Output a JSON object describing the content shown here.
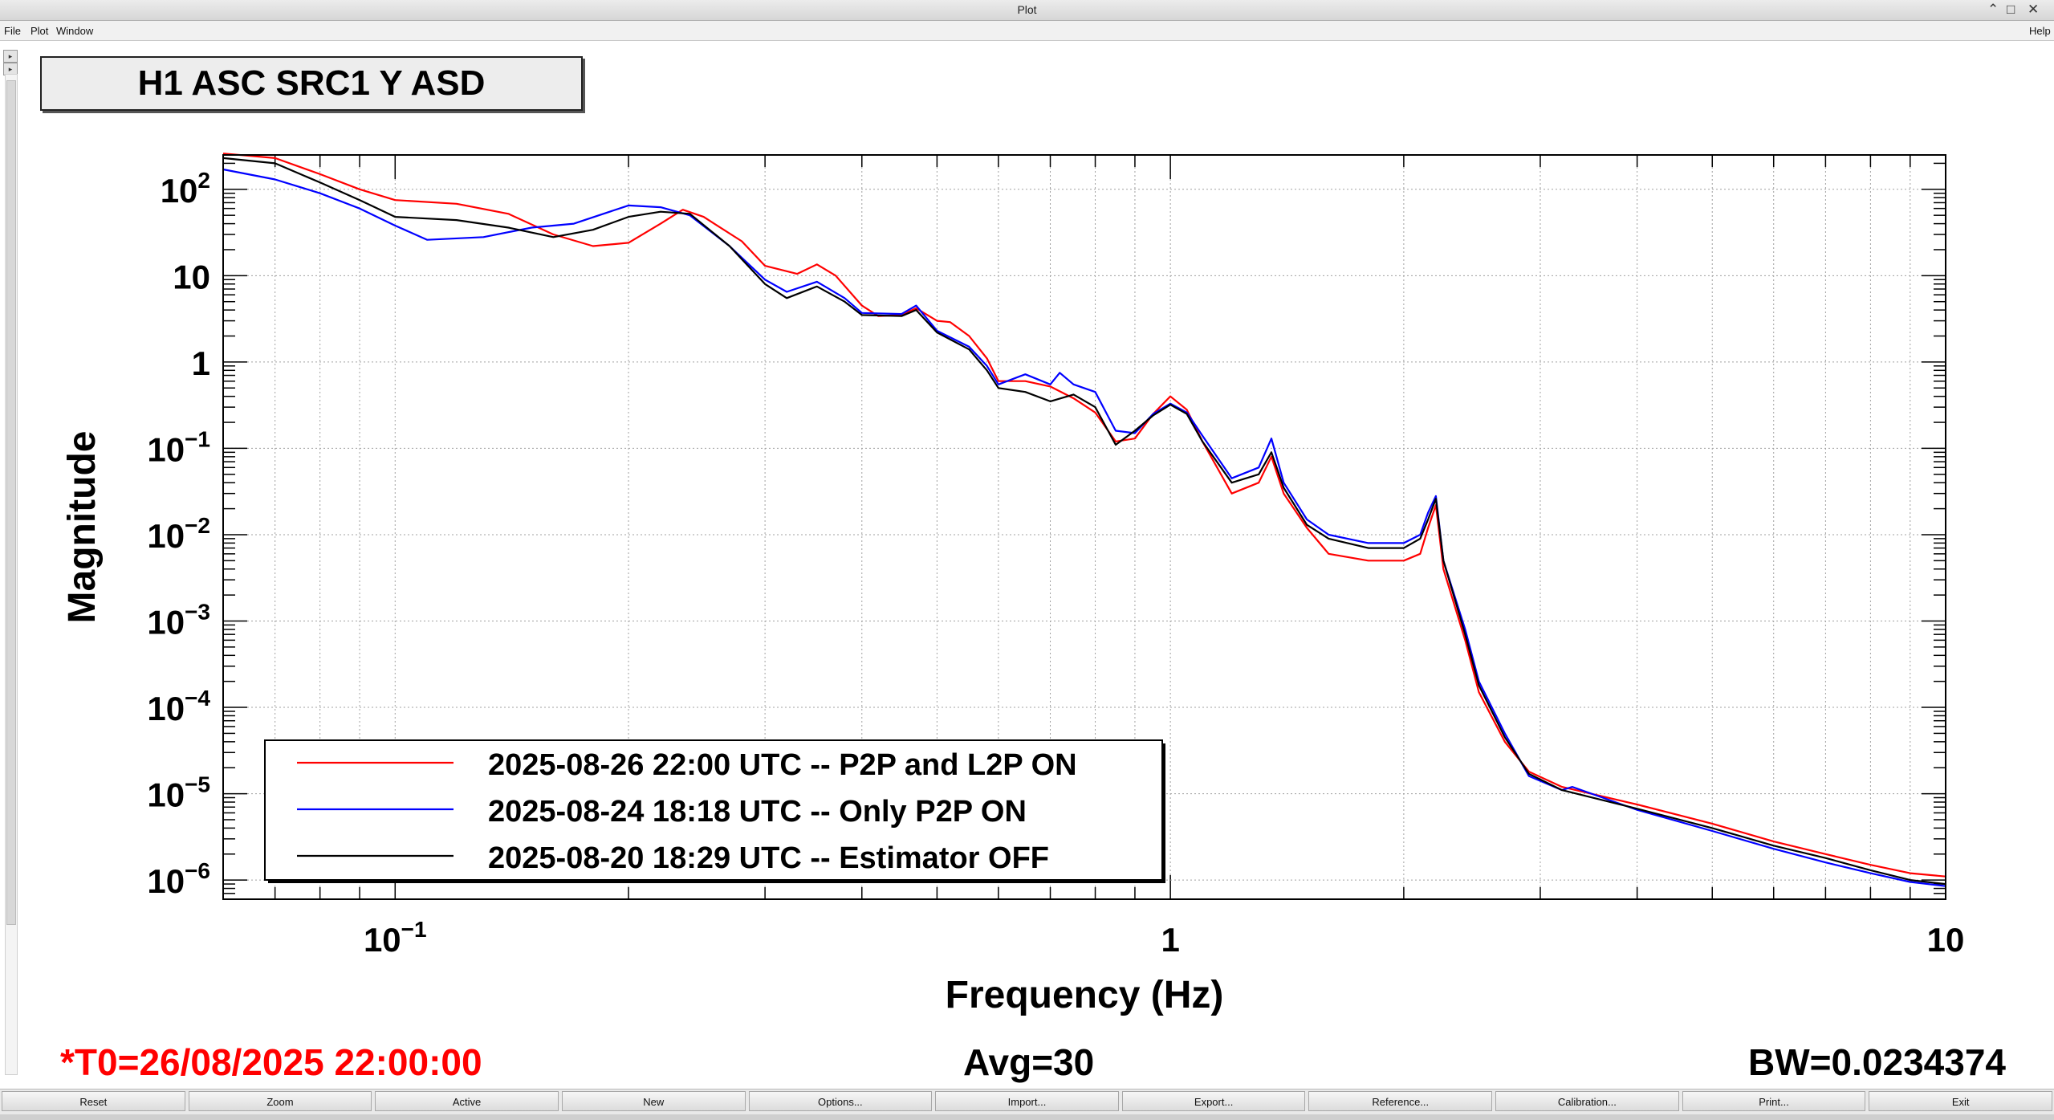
{
  "window": {
    "title": "Plot",
    "controls": [
      "⌃",
      "□",
      "✕"
    ]
  },
  "menu": {
    "file": "File",
    "plot": "Plot",
    "window": "Window",
    "help": "Help"
  },
  "plot": {
    "title": "H1 ASC SRC1 Y ASD"
  },
  "status": {
    "t0": "*T0=26/08/2025 22:00:00",
    "avg": "Avg=30",
    "bw": "BW=0.0234374"
  },
  "buttons": [
    "Reset",
    "Zoom",
    "Active",
    "New",
    "Options...",
    "Import...",
    "Export...",
    "Reference...",
    "Calibration...",
    "Print...",
    "Exit"
  ],
  "colors": {
    "red": "#ff0000",
    "blue": "#0000ff",
    "black": "#000000",
    "titlebox": "#ededed"
  },
  "chart_data": {
    "type": "line",
    "xlabel": "Frequency (Hz)",
    "ylabel": "Magnitude",
    "xscale": "log",
    "yscale": "log",
    "xlim": [
      0.06,
      10
    ],
    "ylim": [
      6e-07,
      250
    ],
    "grid": true,
    "legend_position": "bottom-left",
    "x_ticks": [
      {
        "value": 0.1,
        "base": "10",
        "exp": "−1"
      },
      {
        "value": 1,
        "base": "1",
        "exp": ""
      },
      {
        "value": 10,
        "base": "10",
        "exp": ""
      }
    ],
    "y_ticks": [
      {
        "value": 100,
        "base": "10",
        "exp": "2"
      },
      {
        "value": 10,
        "base": "10",
        "exp": ""
      },
      {
        "value": 1,
        "base": "1",
        "exp": ""
      },
      {
        "value": 0.1,
        "base": "10",
        "exp": "−1"
      },
      {
        "value": 0.01,
        "base": "10",
        "exp": "−2"
      },
      {
        "value": 0.001,
        "base": "10",
        "exp": "−3"
      },
      {
        "value": 0.0001,
        "base": "10",
        "exp": "−4"
      },
      {
        "value": 1e-05,
        "base": "10",
        "exp": "−5"
      },
      {
        "value": 1e-06,
        "base": "10",
        "exp": "−6"
      }
    ],
    "series": [
      {
        "name": "2025-08-26 22:00 UTC -- P2P and L2P ON",
        "color": "#ff0000",
        "points": [
          [
            0.06,
            260
          ],
          [
            0.07,
            230
          ],
          [
            0.08,
            150
          ],
          [
            0.09,
            100
          ],
          [
            0.1,
            75
          ],
          [
            0.12,
            68
          ],
          [
            0.14,
            52
          ],
          [
            0.16,
            30
          ],
          [
            0.18,
            22
          ],
          [
            0.2,
            24
          ],
          [
            0.22,
            40
          ],
          [
            0.235,
            58
          ],
          [
            0.25,
            48
          ],
          [
            0.28,
            25
          ],
          [
            0.3,
            13
          ],
          [
            0.33,
            10.5
          ],
          [
            0.35,
            13.5
          ],
          [
            0.37,
            10
          ],
          [
            0.4,
            4.5
          ],
          [
            0.42,
            3.4
          ],
          [
            0.45,
            3.5
          ],
          [
            0.47,
            4.2
          ],
          [
            0.5,
            3
          ],
          [
            0.52,
            2.9
          ],
          [
            0.55,
            2
          ],
          [
            0.58,
            1.1
          ],
          [
            0.6,
            0.6
          ],
          [
            0.65,
            0.6
          ],
          [
            0.7,
            0.52
          ],
          [
            0.75,
            0.38
          ],
          [
            0.8,
            0.26
          ],
          [
            0.85,
            0.12
          ],
          [
            0.9,
            0.13
          ],
          [
            0.95,
            0.25
          ],
          [
            1.0,
            0.4
          ],
          [
            1.05,
            0.28
          ],
          [
            1.1,
            0.12
          ],
          [
            1.2,
            0.03
          ],
          [
            1.3,
            0.04
          ],
          [
            1.35,
            0.08
          ],
          [
            1.4,
            0.03
          ],
          [
            1.5,
            0.012
          ],
          [
            1.6,
            0.006
          ],
          [
            1.8,
            0.005
          ],
          [
            2.0,
            0.005
          ],
          [
            2.1,
            0.006
          ],
          [
            2.15,
            0.012
          ],
          [
            2.2,
            0.022
          ],
          [
            2.25,
            0.004
          ],
          [
            2.4,
            0.0006
          ],
          [
            2.5,
            0.00015
          ],
          [
            2.7,
            4e-05
          ],
          [
            2.9,
            1.8e-05
          ],
          [
            3.2,
            1.2e-05
          ],
          [
            4,
            7.5e-06
          ],
          [
            5,
            4.5e-06
          ],
          [
            6,
            2.8e-06
          ],
          [
            7,
            2e-06
          ],
          [
            8,
            1.5e-06
          ],
          [
            9,
            1.2e-06
          ],
          [
            10,
            1.1e-06
          ]
        ]
      },
      {
        "name": "2025-08-24 18:18 UTC -- Only P2P ON",
        "color": "#0000ff",
        "points": [
          [
            0.06,
            170
          ],
          [
            0.07,
            130
          ],
          [
            0.08,
            90
          ],
          [
            0.09,
            60
          ],
          [
            0.1,
            38
          ],
          [
            0.11,
            26
          ],
          [
            0.13,
            28
          ],
          [
            0.15,
            36
          ],
          [
            0.17,
            40
          ],
          [
            0.2,
            65
          ],
          [
            0.22,
            62
          ],
          [
            0.24,
            50
          ],
          [
            0.27,
            22
          ],
          [
            0.3,
            9
          ],
          [
            0.32,
            6.5
          ],
          [
            0.35,
            8.5
          ],
          [
            0.38,
            5.5
          ],
          [
            0.4,
            3.7
          ],
          [
            0.45,
            3.6
          ],
          [
            0.47,
            4.5
          ],
          [
            0.5,
            2.3
          ],
          [
            0.55,
            1.5
          ],
          [
            0.58,
            0.9
          ],
          [
            0.6,
            0.55
          ],
          [
            0.65,
            0.72
          ],
          [
            0.7,
            0.55
          ],
          [
            0.72,
            0.75
          ],
          [
            0.75,
            0.55
          ],
          [
            0.8,
            0.45
          ],
          [
            0.85,
            0.16
          ],
          [
            0.9,
            0.15
          ],
          [
            0.95,
            0.25
          ],
          [
            1.0,
            0.33
          ],
          [
            1.05,
            0.26
          ],
          [
            1.1,
            0.14
          ],
          [
            1.2,
            0.045
          ],
          [
            1.3,
            0.06
          ],
          [
            1.35,
            0.13
          ],
          [
            1.4,
            0.04
          ],
          [
            1.5,
            0.015
          ],
          [
            1.6,
            0.01
          ],
          [
            1.8,
            0.008
          ],
          [
            2.0,
            0.008
          ],
          [
            2.1,
            0.01
          ],
          [
            2.15,
            0.018
          ],
          [
            2.2,
            0.028
          ],
          [
            2.25,
            0.005
          ],
          [
            2.4,
            0.0008
          ],
          [
            2.5,
            0.0002
          ],
          [
            2.7,
            5e-05
          ],
          [
            2.9,
            1.6e-05
          ],
          [
            3.2,
            1.1e-05
          ],
          [
            3.3,
            1.2e-05
          ],
          [
            4,
            6.5e-06
          ],
          [
            5,
            3.7e-06
          ],
          [
            6,
            2.3e-06
          ],
          [
            7,
            1.6e-06
          ],
          [
            8,
            1.2e-06
          ],
          [
            9,
            9.5e-07
          ],
          [
            10,
            8.5e-07
          ]
        ]
      },
      {
        "name": "2025-08-20 18:29 UTC -- Estimator OFF",
        "color": "#000000",
        "points": [
          [
            0.06,
            230
          ],
          [
            0.07,
            200
          ],
          [
            0.08,
            120
          ],
          [
            0.09,
            75
          ],
          [
            0.1,
            48
          ],
          [
            0.12,
            44
          ],
          [
            0.14,
            36
          ],
          [
            0.16,
            28
          ],
          [
            0.18,
            34
          ],
          [
            0.2,
            48
          ],
          [
            0.22,
            55
          ],
          [
            0.24,
            52
          ],
          [
            0.27,
            22
          ],
          [
            0.3,
            8
          ],
          [
            0.32,
            5.5
          ],
          [
            0.35,
            7.5
          ],
          [
            0.38,
            5
          ],
          [
            0.4,
            3.5
          ],
          [
            0.45,
            3.4
          ],
          [
            0.47,
            4.0
          ],
          [
            0.5,
            2.2
          ],
          [
            0.55,
            1.4
          ],
          [
            0.58,
            0.8
          ],
          [
            0.6,
            0.5
          ],
          [
            0.65,
            0.45
          ],
          [
            0.7,
            0.35
          ],
          [
            0.75,
            0.42
          ],
          [
            0.8,
            0.3
          ],
          [
            0.85,
            0.11
          ],
          [
            0.9,
            0.16
          ],
          [
            0.95,
            0.24
          ],
          [
            1.0,
            0.32
          ],
          [
            1.05,
            0.25
          ],
          [
            1.1,
            0.12
          ],
          [
            1.2,
            0.04
          ],
          [
            1.3,
            0.05
          ],
          [
            1.35,
            0.09
          ],
          [
            1.4,
            0.035
          ],
          [
            1.5,
            0.013
          ],
          [
            1.6,
            0.009
          ],
          [
            1.8,
            0.007
          ],
          [
            2.0,
            0.007
          ],
          [
            2.1,
            0.009
          ],
          [
            2.15,
            0.015
          ],
          [
            2.2,
            0.026
          ],
          [
            2.25,
            0.005
          ],
          [
            2.4,
            0.0007
          ],
          [
            2.5,
            0.00018
          ],
          [
            2.7,
            4.5e-05
          ],
          [
            2.9,
            1.7e-05
          ],
          [
            3.2,
            1.1e-05
          ],
          [
            4,
            6.7e-06
          ],
          [
            5,
            4e-06
          ],
          [
            6,
            2.5e-06
          ],
          [
            7,
            1.8e-06
          ],
          [
            8,
            1.3e-06
          ],
          [
            9,
            1e-06
          ],
          [
            10,
            9e-07
          ]
        ]
      }
    ]
  }
}
